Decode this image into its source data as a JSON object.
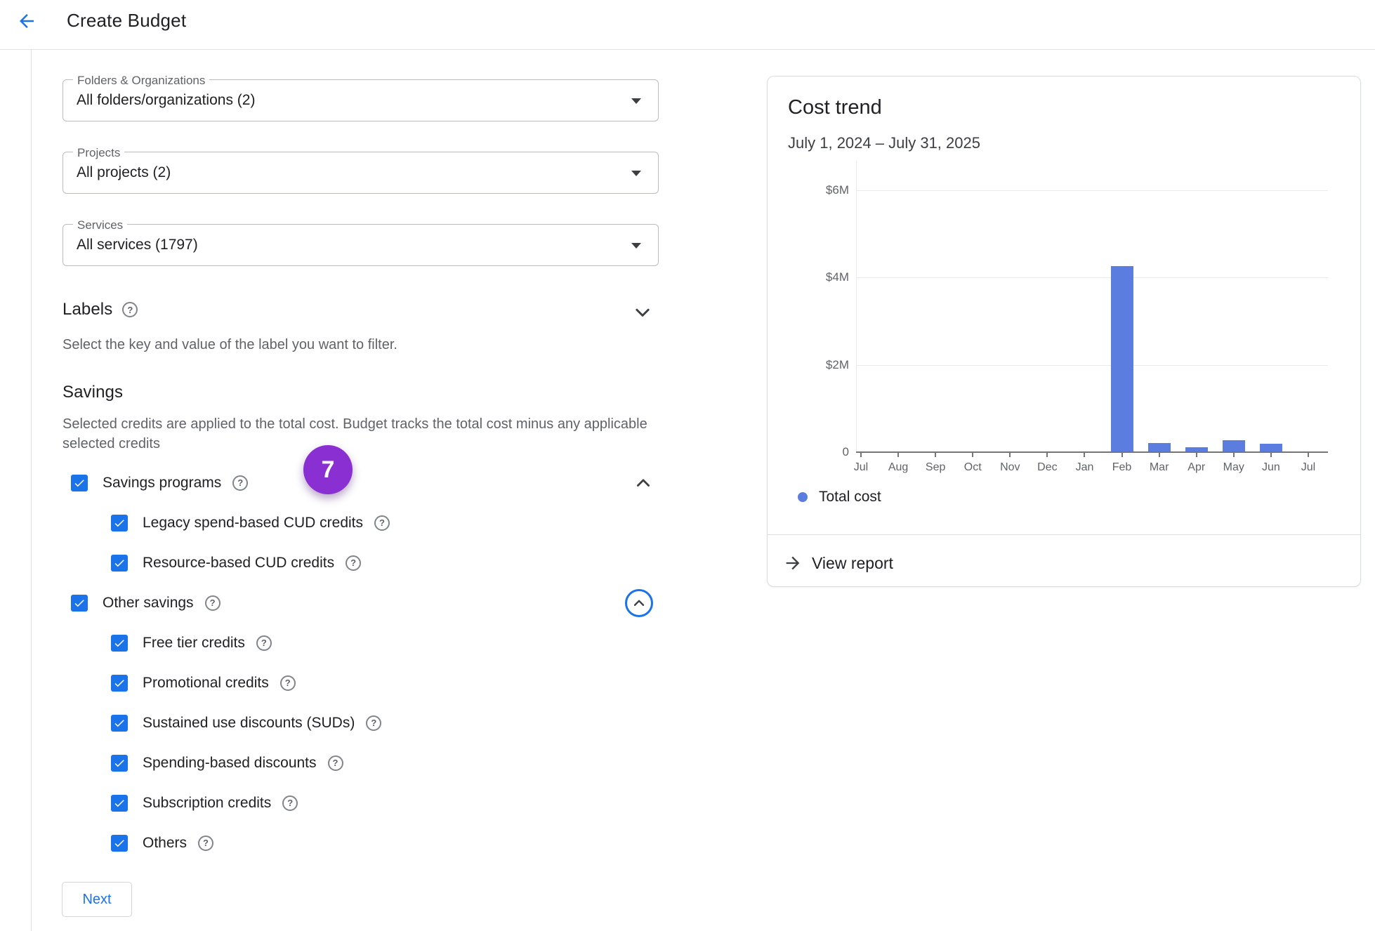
{
  "header": {
    "title": "Create Budget",
    "back_icon": "arrow-back"
  },
  "filters": [
    {
      "label": "Folders & Organizations",
      "value": "All folders/organizations (2)"
    },
    {
      "label": "Projects",
      "value": "All projects (2)"
    },
    {
      "label": "Services",
      "value": "All services (1797)"
    }
  ],
  "labels_section": {
    "title": "Labels",
    "description": "Select the key and value of the label you want to filter."
  },
  "savings_section": {
    "title": "Savings",
    "description": "Selected credits are applied to the total cost. Budget tracks the total cost minus any applicable selected credits",
    "badge": "7",
    "items": [
      {
        "label": "Savings programs",
        "indent": 0,
        "checked": true,
        "help": true,
        "trailing": "chevron-up"
      },
      {
        "label": "Legacy spend-based CUD credits",
        "indent": 1,
        "checked": true,
        "help": true,
        "trailing": null
      },
      {
        "label": "Resource-based CUD credits",
        "indent": 1,
        "checked": true,
        "help": true,
        "trailing": null
      },
      {
        "label": "Other savings",
        "indent": 0,
        "checked": true,
        "help": true,
        "trailing": "circled-chevron-up"
      },
      {
        "label": "Free tier credits",
        "indent": 1,
        "checked": true,
        "help": true,
        "trailing": null
      },
      {
        "label": "Promotional credits",
        "indent": 1,
        "checked": true,
        "help": true,
        "trailing": null
      },
      {
        "label": "Sustained use discounts (SUDs)",
        "indent": 1,
        "checked": true,
        "help": true,
        "trailing": null
      },
      {
        "label": "Spending-based discounts",
        "indent": 1,
        "checked": true,
        "help": true,
        "trailing": null
      },
      {
        "label": "Subscription credits",
        "indent": 1,
        "checked": true,
        "help": true,
        "trailing": null
      },
      {
        "label": "Others",
        "indent": 1,
        "checked": true,
        "help": true,
        "trailing": null
      }
    ]
  },
  "next_label": "Next",
  "cost_trend": {
    "title": "Cost trend",
    "subtitle": "July 1, 2024 – July 31, 2025",
    "legend": "Total cost",
    "view_report": "View report"
  },
  "chart_data": {
    "type": "bar",
    "title": "Cost trend",
    "subtitle": "July 1, 2024 – July 31, 2025",
    "categories": [
      "Jul",
      "Aug",
      "Sep",
      "Oct",
      "Nov",
      "Dec",
      "Jan",
      "Feb",
      "Mar",
      "Apr",
      "May",
      "Jun",
      "Jul"
    ],
    "series": [
      {
        "name": "Total cost",
        "values": [
          0,
          0,
          0,
          0,
          0,
          0,
          0,
          4.25,
          0.19,
          0.1,
          0.26,
          0.18,
          0
        ]
      }
    ],
    "unit": "$M",
    "ylim": [
      0,
      6
    ],
    "yticks": [
      0,
      2,
      4,
      6
    ],
    "ytick_labels": [
      "0",
      "$2M",
      "$4M",
      "$6M"
    ],
    "grid": true,
    "legend_position": "bottom",
    "bar_color": "#5c7de0"
  },
  "colors": {
    "accent_blue": "#1a73e8",
    "bar_blue": "#5c7de0",
    "badge_purple": "#8a2fd1",
    "text_dark": "#202124",
    "text_muted": "#5f6368",
    "border_light": "#dadce0"
  }
}
